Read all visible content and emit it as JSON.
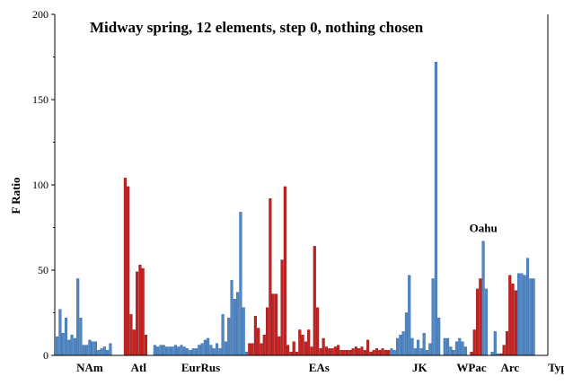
{
  "chart_data": {
    "type": "bar",
    "title": "Midway spring, 12 elements, step 0, nothing chosen",
    "ylabel": "F Ratio",
    "xlabel": "",
    "ylim": [
      0,
      200
    ],
    "yticks": [
      "0",
      "50",
      "100",
      "150",
      "200"
    ],
    "grid": false,
    "legend": "none",
    "colors": {
      "blue": "#4f88c7",
      "red": "#cc2020",
      "axis": "#000000"
    },
    "group_labels": [
      {
        "label": "NAm",
        "start": 0,
        "end": 22
      },
      {
        "label": "Atl",
        "start": 23,
        "end": 32
      },
      {
        "label": "EurRus",
        "start": 33,
        "end": 64
      },
      {
        "label": "EAs",
        "start": 65,
        "end": 112
      },
      {
        "label": "JK",
        "start": 113,
        "end": 132
      },
      {
        "label": "WPac",
        "start": 133,
        "end": 147
      },
      {
        "label": "Arc",
        "start": 148,
        "end": 158
      },
      {
        "label": "Type",
        "start": 159,
        "end": 181
      }
    ],
    "annotations": [
      {
        "text": "Oahu",
        "index": 144
      }
    ],
    "values": [
      11,
      27,
      13,
      22,
      9,
      12,
      10,
      45,
      22,
      6,
      6,
      9,
      8,
      8,
      3,
      4,
      5,
      3,
      7,
      0,
      0,
      0,
      0,
      104,
      99,
      24,
      15,
      49,
      53,
      51,
      12,
      0,
      0,
      6,
      5,
      6,
      6,
      5,
      5,
      5,
      6,
      5,
      6,
      5,
      4,
      3,
      4,
      4,
      6,
      7,
      9,
      10,
      6,
      4,
      7,
      4,
      24,
      8,
      22,
      44,
      33,
      37,
      84,
      28,
      2,
      7,
      7,
      23,
      16,
      7,
      12,
      28,
      92,
      36,
      36,
      11,
      56,
      99,
      6,
      2,
      8,
      2,
      15,
      12,
      8,
      15,
      5,
      64,
      28,
      4,
      10,
      5,
      4,
      4,
      5,
      6,
      3,
      3,
      3,
      3,
      4,
      5,
      4,
      5,
      3,
      9,
      2,
      3,
      4,
      3,
      4,
      3,
      3,
      4,
      3,
      10,
      12,
      14,
      25,
      47,
      10,
      4,
      9,
      4,
      13,
      3,
      7,
      45,
      172,
      22,
      0,
      10,
      10,
      5,
      3,
      8,
      10,
      8,
      5,
      0,
      2,
      15,
      39,
      45,
      67,
      39,
      0,
      2,
      14,
      1,
      1,
      6,
      14,
      47,
      42,
      38,
      48,
      48,
      47,
      57,
      45,
      45,
      0,
      0,
      0,
      0
    ],
    "red_indices": [
      23,
      24,
      25,
      26,
      27,
      28,
      29,
      30,
      65,
      66,
      67,
      68,
      69,
      70,
      71,
      72,
      73,
      74,
      75,
      76,
      77,
      78,
      79,
      80,
      81,
      82,
      83,
      84,
      85,
      86,
      87,
      88,
      89,
      90,
      91,
      92,
      93,
      94,
      95,
      96,
      97,
      98,
      99,
      100,
      101,
      102,
      103,
      104,
      105,
      106,
      107,
      108,
      109,
      110,
      111,
      112,
      139,
      140,
      141,
      142,
      143,
      150,
      151,
      152,
      153,
      154,
      155
    ]
  }
}
